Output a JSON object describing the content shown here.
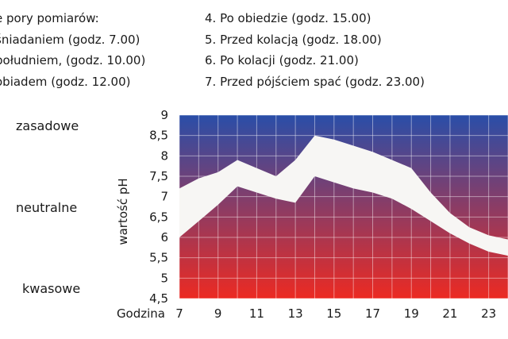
{
  "legend": {
    "heading": "e pory pomiarów:",
    "items_left": [
      "śniadaniem (godz. 7.00)",
      "południem, (godz. 10.00)",
      "obiadem (godz. 12.00)"
    ],
    "items_right": [
      "4. Po obiedzie (godz. 15.00)",
      "5. Przed kolacją (godz. 18.00)",
      "6. Po kolacji (godz. 21.00)",
      "7. Przed pójściem spać (godz. 23.00)"
    ]
  },
  "scale_words": {
    "top": "zasadowe",
    "middle": "neutralne",
    "bottom": "kwasowe"
  },
  "chart_data": {
    "type": "area",
    "title": "",
    "xlabel": "Godzina",
    "ylabel": "wartość pH",
    "x_ticks": [
      7,
      9,
      11,
      13,
      15,
      17,
      19,
      21,
      23
    ],
    "y_ticks": [
      "4,5",
      "5",
      "5,5",
      "6",
      "6,5",
      "7",
      "7,5",
      "8",
      "8,5",
      "9"
    ],
    "ylim": [
      4.5,
      9
    ],
    "xlim": [
      7,
      24
    ],
    "grid": true,
    "background_gradient": {
      "top": "#2a4ea8",
      "bottom": "#ec2a22"
    },
    "band_color": "#f7f6f4",
    "x": [
      7,
      8,
      9,
      10,
      11,
      12,
      13,
      14,
      15,
      16,
      17,
      18,
      19,
      20,
      21,
      22,
      23,
      24
    ],
    "series": [
      {
        "values": [
          7.2,
          7.45,
          7.6,
          7.9,
          7.7,
          7.5,
          7.9,
          8.5,
          8.4,
          8.25,
          8.1,
          7.9,
          7.7,
          7.1,
          6.6,
          6.25,
          6.05,
          5.95
        ]
      },
      {
        "values": [
          6.0,
          6.4,
          6.8,
          7.25,
          7.1,
          6.95,
          6.85,
          7.5,
          7.35,
          7.2,
          7.1,
          6.95,
          6.7,
          6.4,
          6.1,
          5.85,
          5.65,
          5.55
        ]
      }
    ]
  }
}
